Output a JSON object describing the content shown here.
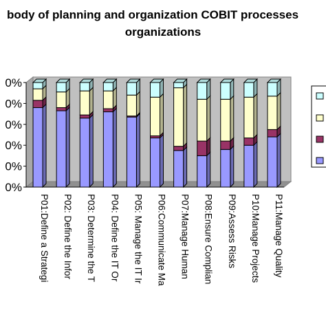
{
  "chart_data": {
    "type": "bar",
    "stacked": true,
    "percent_stacked": true,
    "title_lines": [
      "body of planning and organization COBIT processes",
      "organizations"
    ],
    "categories": [
      "P01:Define a Strategi",
      "P02: Define the Infor",
      "P03: Determine the T",
      "P04: Define the IT Or",
      "P05: Manage the IT Ir",
      "P06:Communicate Ma",
      "P07:Manage Human",
      "P08:Ensure Complian",
      "P09:Assess Risks",
      "P10:Manage Projects",
      "P11:Manage Quality"
    ],
    "series": [
      {
        "color": "#9999ff",
        "values": [
          76,
          73,
          66,
          72,
          67,
          47,
          35,
          30,
          36,
          40,
          48
        ]
      },
      {
        "color": "#993366",
        "values": [
          7,
          3,
          3,
          3,
          1,
          2,
          4,
          14,
          8,
          7,
          7
        ]
      },
      {
        "color": "#ffffcc",
        "values": [
          11,
          15,
          23,
          17,
          20,
          37,
          56,
          40,
          40,
          39,
          32
        ]
      },
      {
        "color": "#ccffff",
        "values": [
          6,
          9,
          8,
          8,
          12,
          14,
          5,
          16,
          16,
          14,
          13
        ]
      }
    ],
    "y_tick_labels": [
      "0%",
      "0%",
      "0%",
      "0%",
      "0%",
      "0%"
    ],
    "ylim": [
      0,
      100
    ],
    "grid": false,
    "legend_position": "right"
  }
}
